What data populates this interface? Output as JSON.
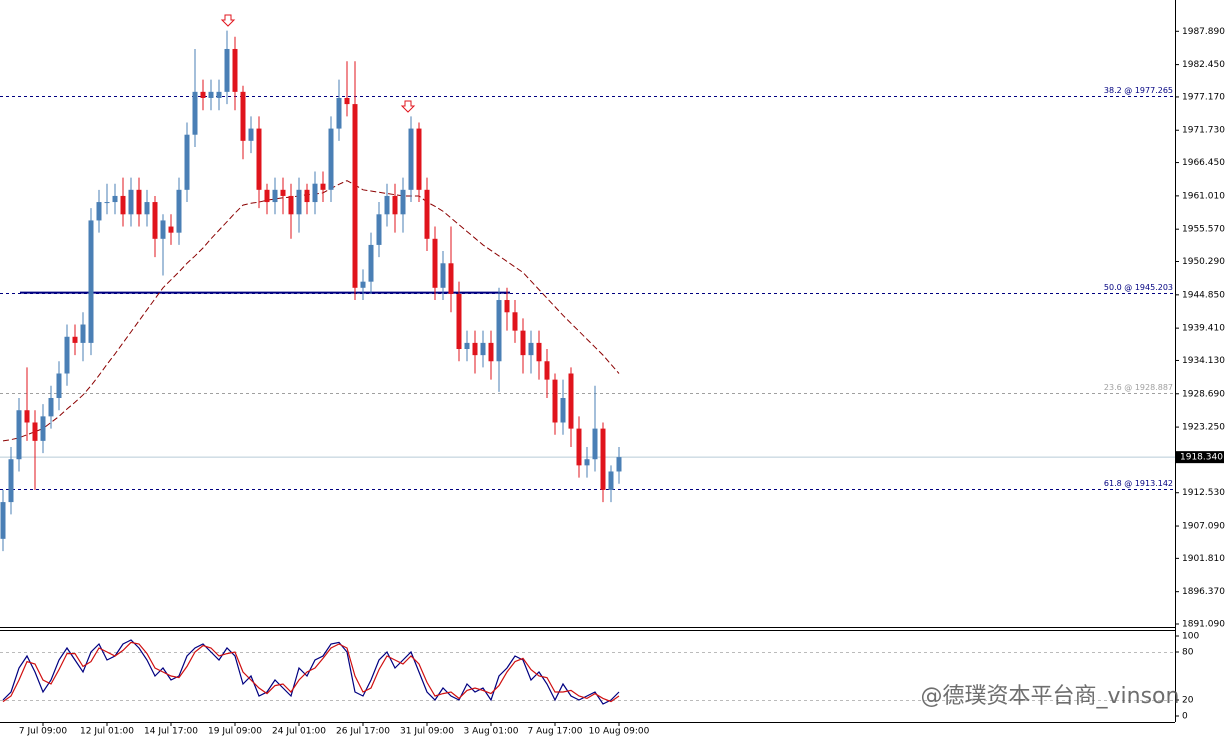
{
  "chart_data": [
    {
      "type": "candlestick",
      "categories": [
        null,
        null,
        null,
        null,
        null,
        "7 Jul 09:00",
        null,
        null,
        null,
        null,
        null,
        null,
        null,
        "12 Jul 01:00",
        null,
        null,
        null,
        null,
        null,
        null,
        null,
        "14 Jul 17:00",
        null,
        null,
        null,
        null,
        null,
        null,
        null,
        "19 Jul 09:00",
        null,
        null,
        null,
        null,
        null,
        null,
        null,
        "24 Jul 01:00",
        null,
        null,
        null,
        null,
        null,
        null,
        null,
        "26 Jul 17:00",
        null,
        null,
        null,
        null,
        null,
        null,
        null,
        "31 Jul 09:00",
        null,
        null,
        null,
        null,
        null,
        null,
        null,
        "3 Aug 01:00",
        null,
        null,
        null,
        null,
        null,
        null,
        null,
        "7 Aug 17:00",
        null,
        null,
        null,
        null,
        null,
        null,
        null,
        "10 Aug 09:00"
      ],
      "open": [
        1905,
        1911,
        1918,
        1926,
        1924,
        1921,
        1925,
        1928,
        1932,
        1938,
        1937,
        1937,
        1957,
        1960,
        1960,
        1961,
        1958,
        1962,
        1958,
        1960,
        1954,
        1956,
        1955,
        1962,
        1971,
        1978,
        1977,
        1977,
        1978,
        1985,
        1978,
        1970,
        1972,
        1962,
        1960,
        1962,
        1961,
        1958,
        1962,
        1960,
        1963,
        1962,
        1972,
        1977,
        1976,
        1946,
        1947,
        1953,
        1958,
        1961,
        1958,
        1962,
        1972,
        1962,
        1954,
        1946,
        1950,
        1945,
        1936,
        1937,
        1935,
        1937,
        1934,
        1944,
        1942,
        1939,
        1935,
        1937,
        1934,
        1931,
        1924,
        1932,
        1923,
        1917,
        1918,
        1923,
        1913,
        1916
      ],
      "high": [
        1913,
        1920,
        1928,
        1933,
        1926,
        1927,
        1930,
        1934,
        1940,
        1940,
        1942,
        1959,
        1962,
        1963,
        1963,
        1964,
        1964,
        1964,
        1962,
        1961,
        1958,
        1958,
        1964,
        1973,
        1985,
        1980,
        1980,
        1980,
        1988,
        1987,
        1979,
        1974,
        1974,
        1963,
        1964,
        1964,
        1963,
        1964,
        1963,
        1965,
        1965,
        1974,
        1980,
        1983,
        1983,
        1949,
        1955,
        1960,
        1963,
        1963,
        1964,
        1974,
        1973,
        1964,
        1956,
        1952,
        1956,
        1947,
        1939,
        1939,
        1939,
        1939,
        1946,
        1946,
        1944,
        1941,
        1939,
        1939,
        1936,
        1932,
        1931,
        1933,
        1925,
        1920,
        1930,
        1924,
        1917,
        1920
      ],
      "low": [
        1903,
        1909,
        1916,
        1921,
        1913,
        1919,
        1923,
        1926,
        1930,
        1935,
        1934,
        1935,
        1955,
        1958,
        1958,
        1956,
        1956,
        1956,
        1956,
        1951,
        1948,
        1953,
        1953,
        1960,
        1969,
        1975,
        1975,
        1975,
        1976,
        1975,
        1967,
        1968,
        1959,
        1958,
        1958,
        1958,
        1954,
        1955,
        1958,
        1958,
        1960,
        1960,
        1970,
        1974,
        1944,
        1944,
        1945,
        1951,
        1956,
        1955,
        1955,
        1960,
        1960,
        1952,
        1944,
        1944,
        1942,
        1934,
        1934,
        1932,
        1933,
        1931,
        1929,
        1939,
        1937,
        1932,
        1932,
        1931,
        1928,
        1922,
        1922,
        1920,
        1915,
        1915,
        1916,
        1911,
        1911,
        1914
      ],
      "close": [
        1911,
        1918,
        1926,
        1924,
        1921,
        1925,
        1928,
        1932,
        1938,
        1937,
        1940,
        1957,
        1960,
        1960,
        1961,
        1958,
        1962,
        1958,
        1960,
        1954,
        1957,
        1955,
        1962,
        1971,
        1978,
        1977,
        1978,
        1978,
        1985,
        1978,
        1970,
        1972,
        1962,
        1960,
        1962,
        1961,
        1958,
        1962,
        1960,
        1963,
        1962,
        1972,
        1977,
        1976,
        1946,
        1947,
        1953,
        1958,
        1961,
        1958,
        1962,
        1972,
        1962,
        1954,
        1946,
        1950,
        1945,
        1936,
        1937,
        1935,
        1937,
        1934,
        1944,
        1942,
        1939,
        1935,
        1937,
        1934,
        1931,
        1924,
        1928,
        1923,
        1917,
        1918,
        1923,
        1913,
        1916,
        1918.34
      ],
      "up_color": "#4a7fb5",
      "down_color": "#e0141c",
      "ma": {
        "color": "#8b0000",
        "values": [
          1921,
          1921.2,
          1921.5,
          1922,
          1922.5,
          1923,
          1924,
          1925,
          1926.2,
          1927.3,
          1928.5,
          1930,
          1931.7,
          1933.5,
          1935.2,
          1937,
          1938.8,
          1940.6,
          1942.4,
          1944.2,
          1946,
          1947.3,
          1948.6,
          1950,
          1951.2,
          1952.5,
          1954,
          1955.4,
          1956.8,
          1958.2,
          1959.5,
          1959.8,
          1960,
          1960.3,
          1960.5,
          1960.7,
          1960.8,
          1961,
          1961.2,
          1961.3,
          1961.5,
          1962.2,
          1962.9,
          1963.5,
          1962.8,
          1962,
          1961.8,
          1961.6,
          1961.4,
          1961.2,
          1961,
          1961,
          1961,
          1960,
          1959.3,
          1958.5,
          1957.4,
          1956.3,
          1955.2,
          1954.1,
          1953,
          1952.1,
          1951.2,
          1950.3,
          1949.4,
          1948.5,
          1947.1,
          1945.7,
          1944.3,
          1942.9,
          1941.5,
          1940.2,
          1938.9,
          1937.6,
          1936.3,
          1935,
          1933.5,
          1932
        ]
      },
      "support_level": {
        "value": 1945.2,
        "color": "#000080"
      },
      "fib_levels": [
        {
          "value": 1977.265,
          "label": "38.2 @ 1977.265",
          "color": "#000080"
        },
        {
          "value": 1945.203,
          "label": "50.0 @ 1945.203",
          "color": "#000080"
        },
        {
          "value": 1928.887,
          "label": "23.6 @ 1928.887",
          "color": "#a0a0a0"
        },
        {
          "value": 1913.142,
          "label": "61.8 @ 1913.142",
          "color": "#000080"
        }
      ],
      "current_price": {
        "value": 1918.34,
        "label": "1918.340"
      },
      "ylim": [
        1890.6,
        1993.0
      ],
      "yticks": [
        {
          "value": 1987.89,
          "label": "1987.890"
        },
        {
          "value": 1982.45,
          "label": "1982.450"
        },
        {
          "value": 1977.17,
          "label": "1977.170"
        },
        {
          "value": 1971.73,
          "label": "1971.730"
        },
        {
          "value": 1966.45,
          "label": "1966.450"
        },
        {
          "value": 1961.01,
          "label": "1961.010"
        },
        {
          "value": 1955.57,
          "label": "1955.570"
        },
        {
          "value": 1950.29,
          "label": "1950.290"
        },
        {
          "value": 1944.85,
          "label": "1944.850"
        },
        {
          "value": 1939.41,
          "label": "1939.410"
        },
        {
          "value": 1934.13,
          "label": "1934.130"
        },
        {
          "value": 1928.69,
          "label": "1928.690"
        },
        {
          "value": 1923.25,
          "label": "1923.250"
        },
        {
          "value": 1912.53,
          "label": "1912.530"
        },
        {
          "value": 1907.09,
          "label": "1907.090"
        },
        {
          "value": 1901.81,
          "label": "1901.810"
        },
        {
          "value": 1896.37,
          "label": "1896.370"
        },
        {
          "value": 1891.09,
          "label": "1891.090"
        }
      ]
    },
    {
      "type": "line",
      "series": [
        {
          "color": "#000080",
          "values": [
            20,
            30,
            60,
            75,
            55,
            30,
            45,
            70,
            85,
            70,
            55,
            80,
            90,
            70,
            75,
            90,
            95,
            85,
            70,
            50,
            60,
            45,
            50,
            75,
            85,
            90,
            80,
            70,
            85,
            75,
            40,
            50,
            25,
            30,
            45,
            35,
            25,
            60,
            50,
            70,
            75,
            90,
            92,
            80,
            30,
            25,
            45,
            70,
            80,
            60,
            70,
            80,
            55,
            30,
            20,
            35,
            25,
            20,
            40,
            30,
            35,
            20,
            50,
            60,
            75,
            70,
            45,
            55,
            40,
            20,
            40,
            25,
            20,
            25,
            30,
            15,
            20,
            30
          ]
        },
        {
          "color": "#d01010",
          "values": [
            18,
            25,
            45,
            68,
            65,
            45,
            40,
            58,
            78,
            78,
            62,
            68,
            85,
            80,
            75,
            82,
            92,
            90,
            78,
            60,
            55,
            50,
            48,
            62,
            80,
            88,
            85,
            75,
            78,
            80,
            55,
            45,
            35,
            28,
            38,
            40,
            30,
            45,
            55,
            60,
            72,
            85,
            90,
            85,
            50,
            30,
            35,
            58,
            75,
            70,
            65,
            75,
            65,
            42,
            25,
            28,
            30,
            22,
            32,
            35,
            32,
            28,
            38,
            55,
            68,
            72,
            58,
            50,
            48,
            30,
            30,
            32,
            25,
            22,
            28,
            22,
            18,
            25
          ]
        }
      ],
      "levels": [
        80,
        20
      ],
      "ylim": [
        -7.5,
        107.5
      ],
      "yticks": [
        100,
        80,
        20,
        0
      ]
    }
  ],
  "watermark": "@德璞资本平台商_vinson"
}
